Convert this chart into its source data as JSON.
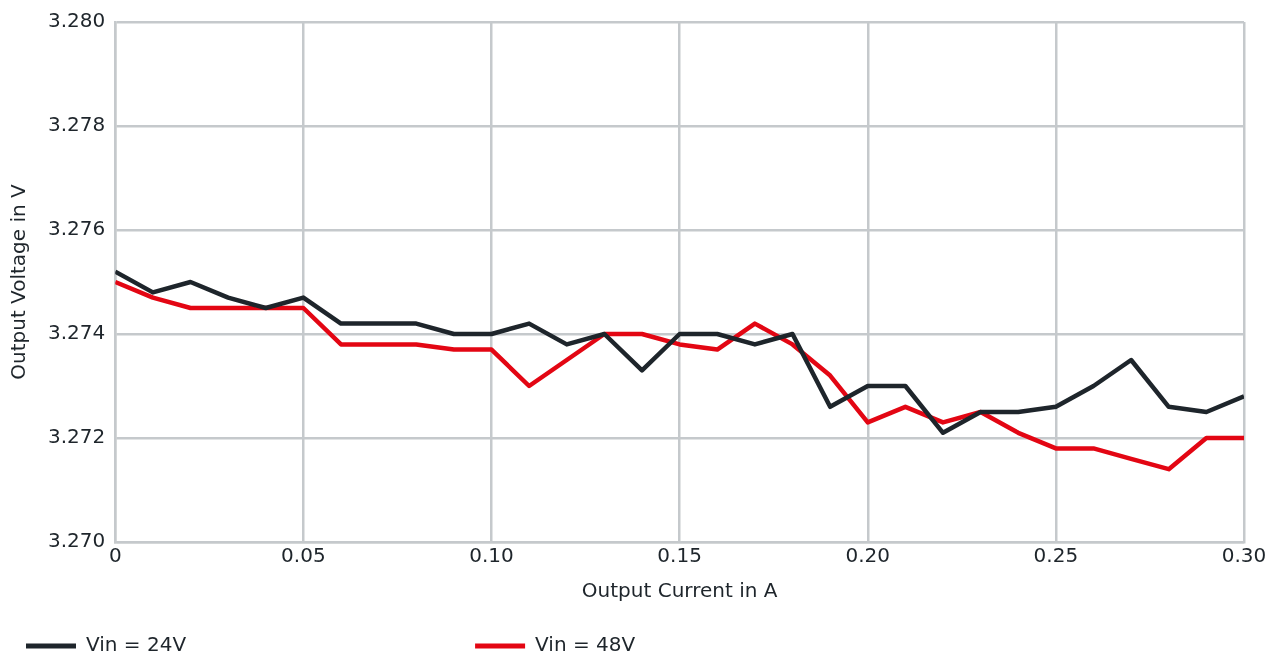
{
  "chart_data": {
    "type": "line",
    "xlabel": "Output Current in A",
    "ylabel": "Output Voltage in V",
    "x": [
      0,
      0.01,
      0.02,
      0.03,
      0.04,
      0.05,
      0.06,
      0.07,
      0.08,
      0.09,
      0.1,
      0.11,
      0.12,
      0.13,
      0.14,
      0.15,
      0.16,
      0.17,
      0.18,
      0.19,
      0.2,
      0.21,
      0.22,
      0.23,
      0.24,
      0.25,
      0.26,
      0.27,
      0.28,
      0.29,
      0.3
    ],
    "series": [
      {
        "name": "Vin = 24V",
        "color": "#1e252b",
        "values": [
          3.2752,
          3.2748,
          3.275,
          3.2747,
          3.2745,
          3.2747,
          3.2742,
          3.2742,
          3.2742,
          3.274,
          3.274,
          3.2742,
          3.2738,
          3.274,
          3.2733,
          3.274,
          3.274,
          3.2738,
          3.274,
          3.2726,
          3.273,
          3.273,
          3.2721,
          3.2725,
          3.2725,
          3.2726,
          3.273,
          3.2735,
          3.2726,
          3.2725,
          3.2728
        ]
      },
      {
        "name": "Vin = 48V",
        "color": "#e30613",
        "values": [
          3.275,
          3.2747,
          3.2745,
          3.2745,
          3.2745,
          3.2745,
          3.2738,
          3.2738,
          3.2738,
          3.2737,
          3.2737,
          3.273,
          3.2735,
          3.274,
          3.274,
          3.2738,
          3.2737,
          3.2742,
          3.2738,
          3.2732,
          3.2723,
          3.2726,
          3.2723,
          3.2725,
          3.2721,
          3.2718,
          3.2718,
          3.2716,
          3.2714,
          3.272,
          3.272
        ]
      }
    ],
    "xlim": [
      0,
      0.3
    ],
    "xticks": [
      0,
      0.05,
      {
        "value": 0.1,
        "label": "0.10"
      },
      0.15,
      {
        "value": 0.2,
        "label": "0.20"
      },
      0.25,
      {
        "value": 0.3,
        "label": "0.30"
      }
    ],
    "ylim": [
      3.27,
      3.28
    ],
    "yticks": [
      {
        "value": 3.27,
        "label": "3.270"
      },
      3.272,
      3.274,
      3.276,
      3.278,
      {
        "value": 3.28,
        "label": "3.280"
      }
    ],
    "grid": true,
    "legend": "bottom left",
    "marker": "none",
    "line_style": "solid"
  }
}
